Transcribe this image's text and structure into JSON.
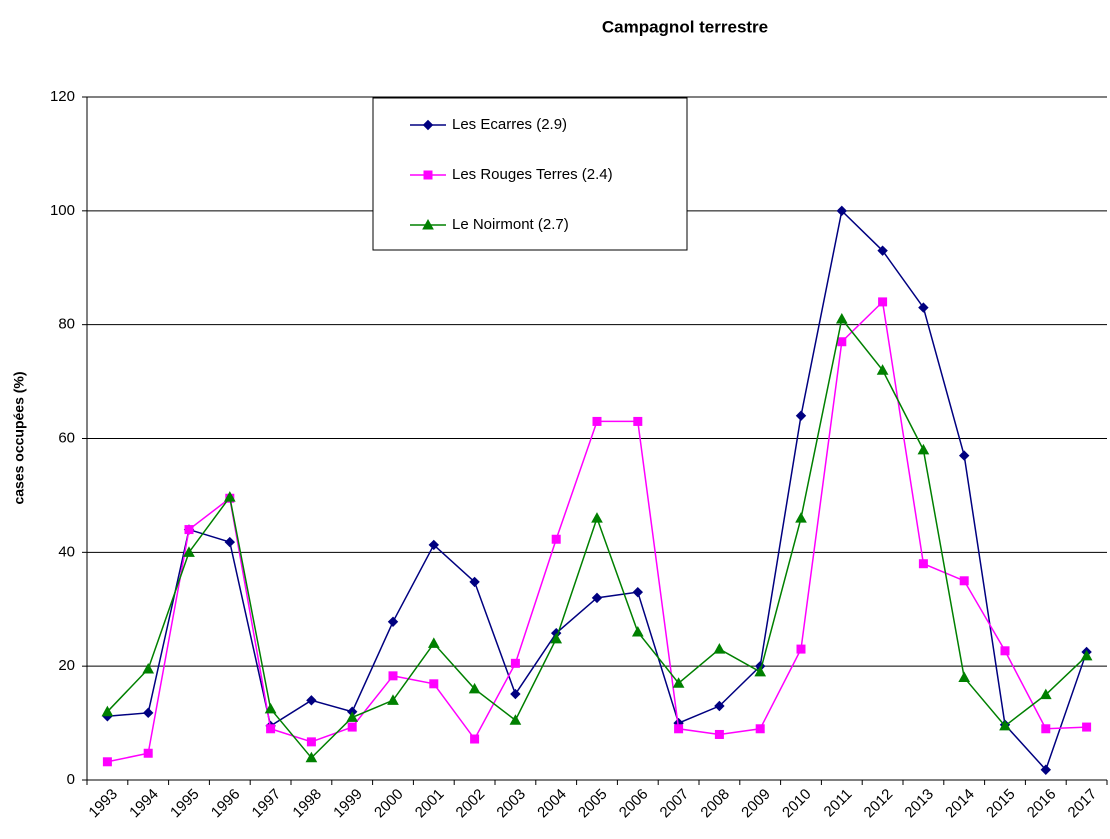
{
  "chart_data": {
    "type": "line",
    "title": "Campagnol terrestre",
    "y_label": "cases occupées (%)",
    "categories": [
      "1993",
      "1994",
      "1995",
      "1996",
      "1997",
      "1998",
      "1999",
      "2000",
      "2001",
      "2002",
      "2003",
      "2004",
      "2005",
      "2006",
      "2007",
      "2008",
      "2009",
      "2010",
      "2011",
      "2012",
      "2013",
      "2014",
      "2015",
      "2016",
      "2017"
    ],
    "series": [
      {
        "name": "Les Ecarres (2.9)",
        "color": "#000080",
        "marker": "diamond",
        "values": [
          11.2,
          11.8,
          44,
          41.8,
          9.5,
          14,
          12,
          27.8,
          41.3,
          34.8,
          15.1,
          25.8,
          32,
          33,
          10,
          13,
          20,
          64,
          100,
          93,
          83,
          57,
          9.7,
          1.8,
          22.5
        ]
      },
      {
        "name": "Les Rouges Terres (2.4)",
        "color": "#ff00ff",
        "marker": "square",
        "values": [
          3.2,
          4.7,
          44,
          49.5,
          9,
          6.7,
          9.3,
          18.3,
          16.9,
          7.2,
          20.5,
          42.3,
          63,
          63,
          9,
          8,
          9,
          23,
          77,
          84,
          38,
          35,
          22.7,
          9,
          9.3
        ]
      },
      {
        "name": "Le Noirmont (2.7)",
        "color": "#008000",
        "marker": "triangle",
        "values": [
          12,
          19.5,
          40,
          49.7,
          12.5,
          3.9,
          11,
          14,
          24,
          16,
          10.5,
          24.8,
          46,
          26,
          17,
          23,
          19,
          46,
          81,
          72,
          58,
          18,
          9.5,
          15,
          21.8
        ]
      }
    ],
    "ylim": [
      0,
      120
    ],
    "yticks": [
      0,
      20,
      40,
      60,
      80,
      100,
      120
    ],
    "grid": true
  }
}
